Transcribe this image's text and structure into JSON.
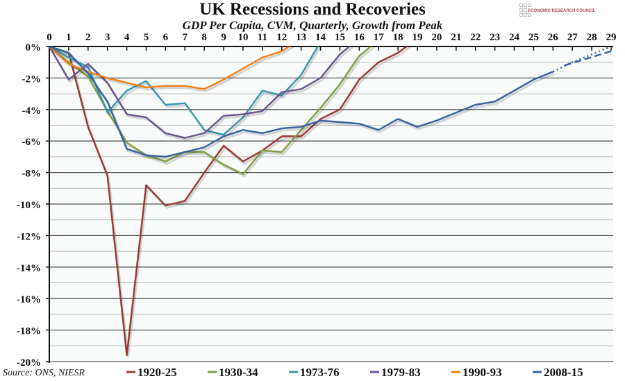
{
  "chart_data": {
    "type": "line",
    "title": "UK Recessions and Recoveries",
    "subtitle": "GDP Per Capita, CVM, Quarterly, Growth from Peak",
    "source": "Source: ONS, NIESR",
    "logo_text": "ECONOMIC RESEARCH COUNCIL",
    "xlim": [
      0,
      29
    ],
    "ylim": [
      -20,
      0
    ],
    "x_ticks": [
      "0",
      "1",
      "2",
      "3",
      "4",
      "5",
      "6",
      "7",
      "8",
      "9",
      "10",
      "11",
      "12",
      "13",
      "14",
      "15",
      "16",
      "17",
      "18",
      "19",
      "20",
      "21",
      "22",
      "23",
      "24",
      "25",
      "26",
      "27",
      "28",
      "29"
    ],
    "y_ticks": [
      "0%",
      "-2%",
      "-4%",
      "-6%",
      "-8%",
      "-10%",
      "-12%",
      "-14%",
      "-16%",
      "-18%",
      "-20%"
    ],
    "y_tick_values": [
      0,
      -2,
      -4,
      -6,
      -8,
      -10,
      -12,
      -14,
      -16,
      -18,
      -20
    ],
    "x_axis_position": "top",
    "grid": true,
    "legend_position": "bottom",
    "series": [
      {
        "name": "1920-25",
        "color": "#9b3a36",
        "x": [
          0,
          1,
          2,
          3,
          4,
          5,
          6,
          7,
          8,
          9,
          10,
          11,
          12,
          13,
          14,
          15,
          16,
          17,
          18,
          19
        ],
        "values": [
          0,
          -0.4,
          -5.1,
          -8.2,
          -19.6,
          -8.8,
          -10.1,
          -9.8,
          -8.0,
          -6.3,
          -7.3,
          -6.6,
          -5.7,
          -5.7,
          -4.6,
          -4.0,
          -2.1,
          -1.0,
          -0.4,
          0.5
        ]
      },
      {
        "name": "1930-34",
        "color": "#7f9f3f",
        "x": [
          0,
          1,
          2,
          3,
          4,
          5,
          6,
          7,
          8,
          9,
          10,
          11,
          12,
          13,
          14,
          15,
          16,
          17
        ],
        "values": [
          0,
          -1.0,
          -1.9,
          -4.1,
          -6.1,
          -6.9,
          -7.3,
          -6.7,
          -6.7,
          -7.5,
          -8.1,
          -6.6,
          -6.7,
          -5.3,
          -3.9,
          -2.4,
          -0.6,
          0.4
        ]
      },
      {
        "name": "1973-76",
        "color": "#3a97b0",
        "x": [
          0,
          1,
          2,
          3,
          4,
          5,
          6,
          7,
          8,
          9,
          10,
          11,
          12,
          13,
          14
        ],
        "values": [
          0,
          -0.7,
          -1.3,
          -4.2,
          -2.8,
          -2.2,
          -3.7,
          -3.6,
          -5.3,
          -5.6,
          -4.5,
          -2.8,
          -3.1,
          -1.8,
          0.3
        ]
      },
      {
        "name": "1979-83",
        "color": "#6c5591",
        "x": [
          0,
          1,
          2,
          3,
          4,
          5,
          6,
          7,
          8,
          9,
          10,
          11,
          12,
          13,
          14,
          15,
          16
        ],
        "values": [
          0,
          -2.1,
          -1.1,
          -2.3,
          -4.3,
          -4.5,
          -5.5,
          -5.8,
          -5.5,
          -4.4,
          -4.3,
          -4.1,
          -2.9,
          -2.7,
          -2.0,
          -0.5,
          0.5
        ]
      },
      {
        "name": "1990-93",
        "color": "#f07f1a",
        "x": [
          0,
          1,
          2,
          3,
          4,
          5,
          6,
          7,
          8,
          9,
          10,
          11,
          12,
          13
        ],
        "values": [
          0,
          -1.1,
          -1.6,
          -2.0,
          -2.3,
          -2.6,
          -2.5,
          -2.5,
          -2.7,
          -2.1,
          -1.4,
          -0.7,
          -0.3,
          0.5
        ]
      },
      {
        "name": "2008-15",
        "color": "#3a64a0",
        "x": [
          0,
          1,
          2,
          3,
          4,
          5,
          6,
          7,
          8,
          9,
          10,
          11,
          12,
          13,
          14,
          15,
          16,
          17,
          18,
          19,
          20,
          21,
          22,
          23,
          24,
          25,
          26
        ],
        "values": [
          0,
          -0.4,
          -1.7,
          -3.5,
          -6.5,
          -6.9,
          -7.0,
          -6.7,
          -6.4,
          -5.7,
          -5.3,
          -5.5,
          -5.2,
          -5.1,
          -4.7,
          -4.8,
          -4.9,
          -5.3,
          -4.6,
          -5.1,
          -4.7,
          -4.2,
          -3.7,
          -3.5,
          -2.8,
          -2.1,
          -1.6
        ],
        "forecast_dotted": {
          "x": [
            26,
            27,
            29
          ],
          "values": [
            -1.6,
            -1.0,
            0
          ]
        },
        "forecast_dashed": {
          "x": [
            26.6,
            29
          ],
          "values": [
            -1.2,
            -0.3
          ]
        }
      }
    ]
  }
}
